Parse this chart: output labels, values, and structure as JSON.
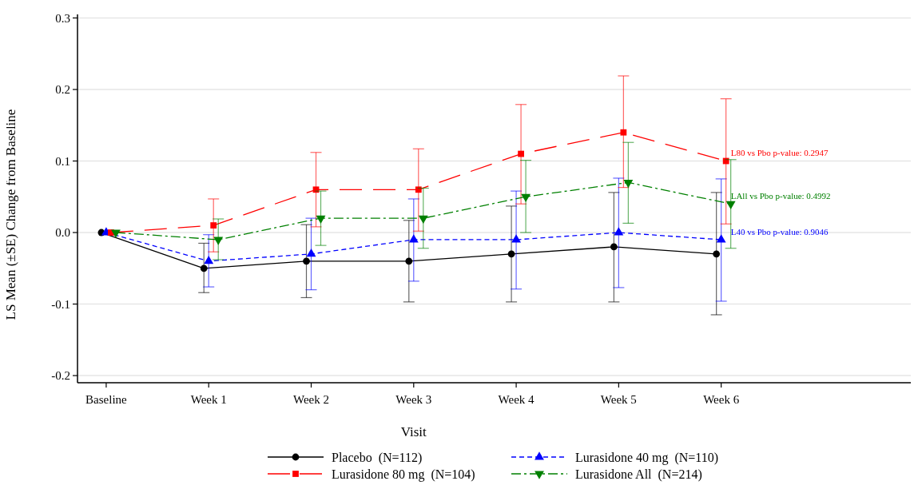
{
  "chart_data": {
    "type": "line",
    "xlabel": "Visit",
    "ylabel": "LS Mean (±SE) Change from Baseline",
    "categories": [
      "Baseline",
      "Week 1",
      "Week 2",
      "Week 3",
      "Week 4",
      "Week 5",
      "Week 6"
    ],
    "ylim": [
      -0.21,
      0.305
    ],
    "yticks": [
      {
        "value": -0.2,
        "label": "-0.2"
      },
      {
        "value": -0.1,
        "label": "-0.1"
      },
      {
        "value": 0,
        "label": "0.0"
      },
      {
        "value": 0.1,
        "label": "0.1"
      },
      {
        "value": 0.2,
        "label": "0.2"
      },
      {
        "value": 0.3,
        "label": "0.3"
      }
    ],
    "grid": "y",
    "legend": "bottom",
    "series": [
      {
        "name": "Placebo  (N=112)",
        "color": "#000000",
        "marker": "circle",
        "line_style": "solid",
        "values": [
          0,
          -0.05,
          -0.04,
          -0.04,
          -0.03,
          -0.02,
          -0.03
        ],
        "errors": [
          null,
          [
            -0.084,
            -0.015
          ],
          [
            -0.091,
            0.011
          ],
          [
            -0.097,
            0.017
          ],
          [
            -0.097,
            0.037
          ],
          [
            -0.097,
            0.056
          ],
          [
            -0.115,
            0.056
          ]
        ]
      },
      {
        "name": "Lurasidone 40 mg  (N=110)",
        "color": "#0000ff",
        "marker": "triangle",
        "line_style": "dashed",
        "values": [
          0,
          -0.04,
          -0.03,
          -0.01,
          -0.01,
          0,
          -0.01
        ],
        "errors": [
          null,
          [
            -0.076,
            -0.003
          ],
          [
            -0.08,
            0.02
          ],
          [
            -0.068,
            0.047
          ],
          [
            -0.079,
            0.058
          ],
          [
            -0.077,
            0.076
          ],
          [
            -0.096,
            0.075
          ]
        ]
      },
      {
        "name": "Lurasidone 80 mg  (N=104)",
        "color": "#ff0000",
        "marker": "square",
        "line_style": "dashed",
        "values": [
          0,
          0.01,
          0.06,
          0.06,
          0.11,
          0.14,
          0.1
        ],
        "errors": [
          null,
          [
            -0.027,
            0.047
          ],
          [
            0.008,
            0.112
          ],
          [
            0.002,
            0.117
          ],
          [
            0.04,
            0.179
          ],
          [
            0.063,
            0.219
          ],
          [
            0.012,
            0.187
          ]
        ]
      },
      {
        "name": "Lurasidone All  (N=214)",
        "color": "#008000",
        "marker": "triangle-down",
        "line_style": "dashed",
        "values": [
          0,
          -0.01,
          0.02,
          0.02,
          0.05,
          0.07,
          0.04
        ],
        "errors": [
          null,
          [
            -0.038,
            0.019
          ],
          [
            -0.018,
            0.058
          ],
          [
            -0.022,
            0.062
          ],
          [
            0,
            0.101
          ],
          [
            0.013,
            0.126
          ],
          [
            -0.022,
            0.102
          ]
        ]
      }
    ],
    "annotations": [
      {
        "text": "L80 vs Pbo p-value: 0.2947",
        "x": "Week 6",
        "y": 0.1
      },
      {
        "text": "LAll vs Pbo p-value: 0.4992",
        "x": "Week 6",
        "y": 0.04
      },
      {
        "text": "L40 vs Pbo p-value: 0.9046",
        "x": "Week 6",
        "y": -0.01
      }
    ]
  }
}
